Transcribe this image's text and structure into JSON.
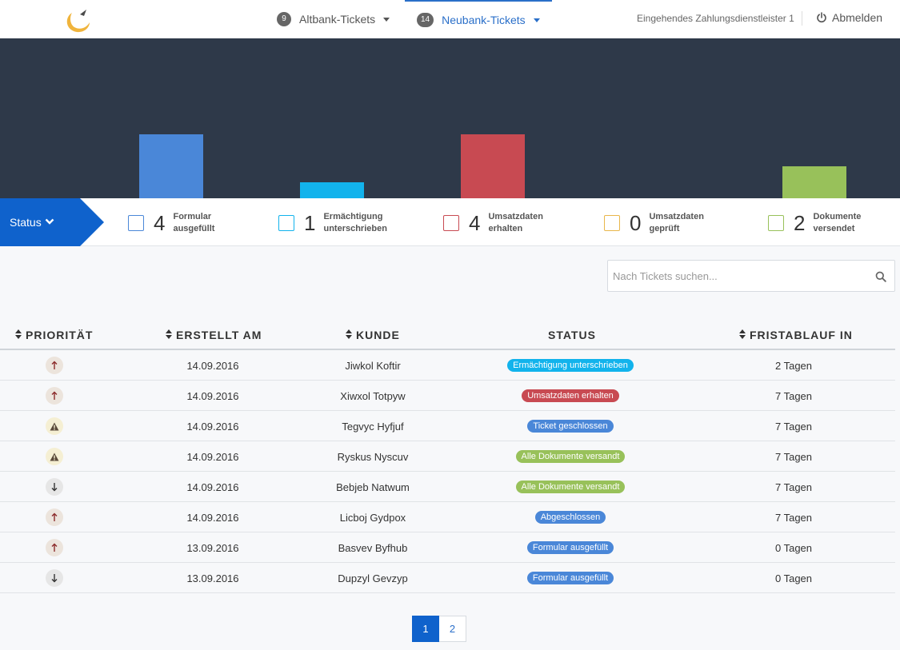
{
  "nav": {
    "tabs": [
      {
        "count": "9",
        "label": "Altbank-Tickets",
        "active": false
      },
      {
        "count": "14",
        "label": "Neubank-Tickets",
        "active": true
      }
    ],
    "merchant": "Eingehendes Zahlungsdienstleister 1",
    "logout": "Abmelden"
  },
  "chart_data": {
    "type": "bar",
    "categories": [
      "Formular ausgefüllt",
      "Ermächtigung unterschrieben",
      "Umsatzdaten erhalten",
      "Umsatzdaten geprüft",
      "Dokumente versendet"
    ],
    "values": [
      4,
      1,
      4,
      0,
      2
    ],
    "colors": [
      "#4a87d8",
      "#12b3ec",
      "#c84a52",
      "#e8b64a",
      "#98c15a"
    ],
    "ylim": [
      0,
      5
    ],
    "grid": false,
    "title": "",
    "xlabel": "",
    "ylabel": ""
  },
  "status": {
    "button_label": "Status",
    "items": [
      {
        "count": "4",
        "label": "Formular ausgefüllt",
        "color": "#4a87d8"
      },
      {
        "count": "1",
        "label": "Ermächtigung unterschrieben",
        "color": "#12b3ec"
      },
      {
        "count": "4",
        "label": "Umsatzdaten erhalten",
        "color": "#c84a52"
      },
      {
        "count": "0",
        "label": "Umsatzdaten geprüft",
        "color": "#e8b64a"
      },
      {
        "count": "2",
        "label": "Dokumente versendet",
        "color": "#98c15a"
      }
    ]
  },
  "search": {
    "placeholder": "Nach Tickets suchen..."
  },
  "table": {
    "headers": {
      "priority": "PRIORITÄT",
      "created": "ERSTELLT AM",
      "customer": "KUNDE",
      "status": "STATUS",
      "deadline": "FRISTABLAUF IN"
    },
    "rows": [
      {
        "priority": "up",
        "created": "14.09.2016",
        "customer": "Jiwkol Koftir",
        "status": "Ermächtigung unterschrieben",
        "status_color": "#12b3ec",
        "deadline": "2 Tagen"
      },
      {
        "priority": "up",
        "created": "14.09.2016",
        "customer": "Xiwxol Totpyw",
        "status": "Umsatzdaten erhalten",
        "status_color": "#c84a52",
        "deadline": "7 Tagen"
      },
      {
        "priority": "warn",
        "created": "14.09.2016",
        "customer": "Tegvyc Hyfjuf",
        "status": "Ticket geschlossen",
        "status_color": "#4a87d8",
        "deadline": "7 Tagen"
      },
      {
        "priority": "warn",
        "created": "14.09.2016",
        "customer": "Ryskus Nyscuv",
        "status": "Alle Dokumente versandt",
        "status_color": "#98c15a",
        "deadline": "7 Tagen"
      },
      {
        "priority": "down",
        "created": "14.09.2016",
        "customer": "Bebjeb Natwum",
        "status": "Alle Dokumente versandt",
        "status_color": "#98c15a",
        "deadline": "7 Tagen"
      },
      {
        "priority": "up",
        "created": "14.09.2016",
        "customer": "Licboj Gydpox",
        "status": "Abgeschlossen",
        "status_color": "#4a87d8",
        "deadline": "7 Tagen"
      },
      {
        "priority": "up",
        "created": "13.09.2016",
        "customer": "Basvev Byfhub",
        "status": "Formular ausgefüllt",
        "status_color": "#4a87d8",
        "deadline": "0 Tagen"
      },
      {
        "priority": "down",
        "created": "13.09.2016",
        "customer": "Dupzyl Gevzyp",
        "status": "Formular ausgefüllt",
        "status_color": "#4a87d8",
        "deadline": "0 Tagen"
      }
    ]
  },
  "pagination": {
    "pages": [
      "1",
      "2"
    ],
    "current": "1"
  },
  "icons": {
    "logo": "crescent-logo-icon",
    "logout": "power-icon",
    "search": "search-icon",
    "status_chevron": "chevron-down-icon"
  }
}
